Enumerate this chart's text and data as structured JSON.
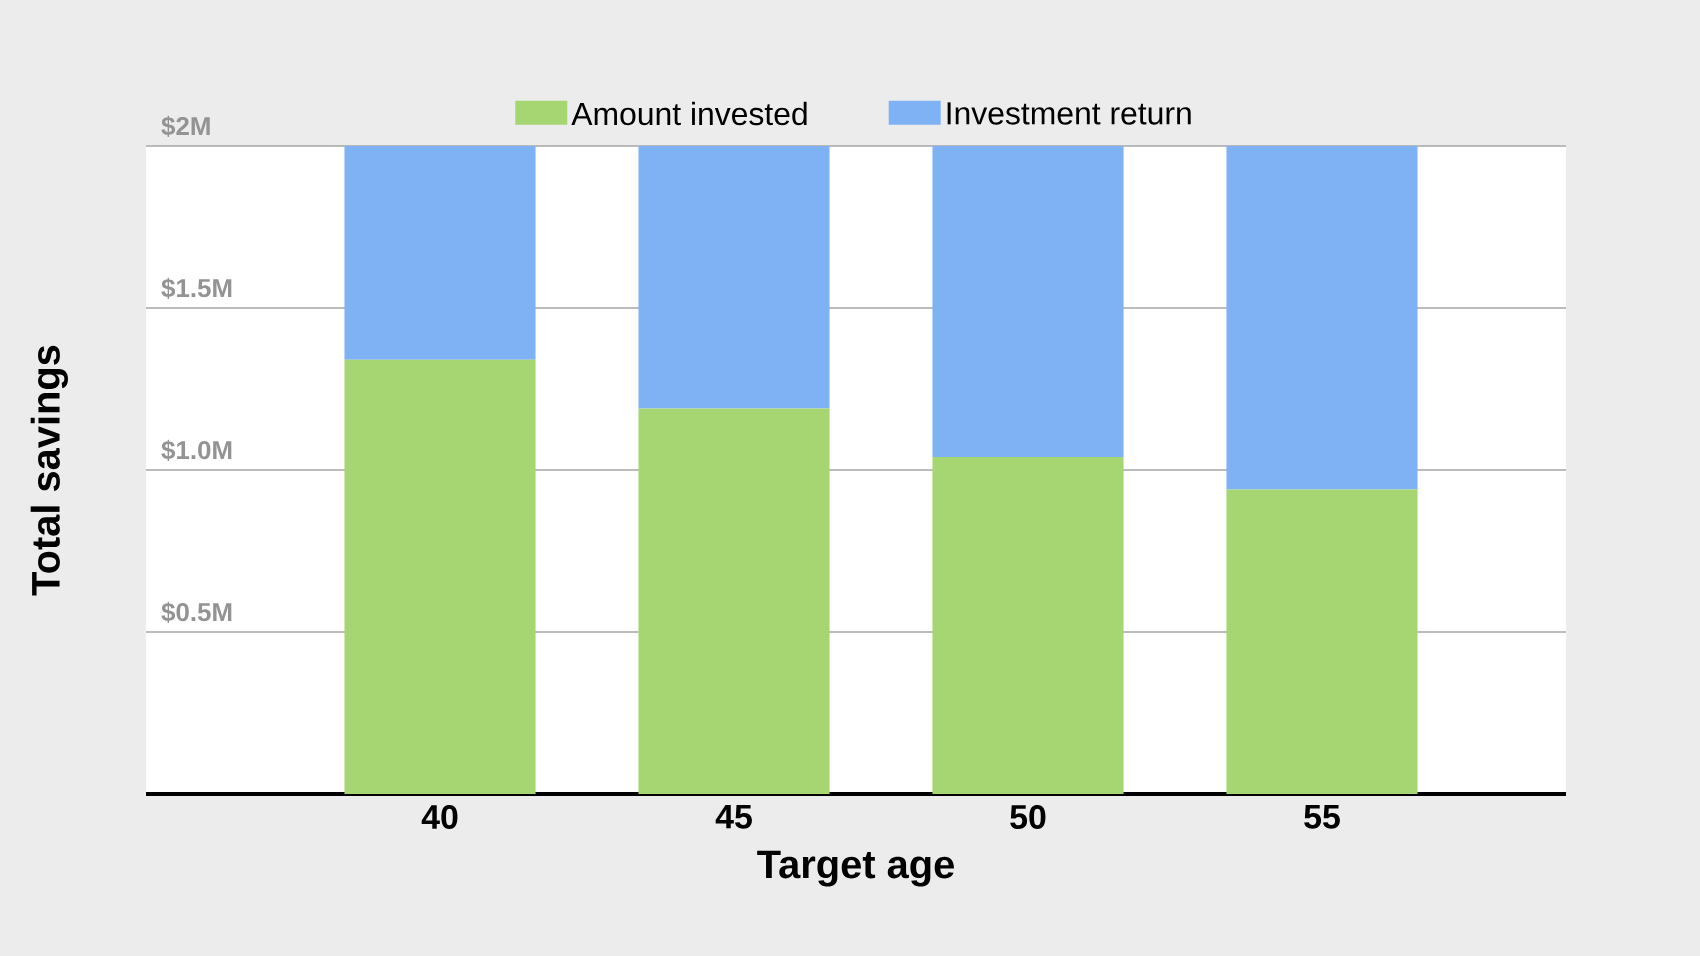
{
  "chart_data": {
    "type": "bar",
    "stacked": true,
    "xlabel": "Target age",
    "ylabel": "Total savings",
    "categories": [
      "40",
      "45",
      "50",
      "55"
    ],
    "series": [
      {
        "name": "Amount invested",
        "color": "#a6d672",
        "values": [
          1.34,
          1.19,
          1.04,
          0.94
        ]
      },
      {
        "name": "Investment return",
        "color": "#7fb2f5",
        "values": [
          0.66,
          0.81,
          0.96,
          1.06
        ]
      }
    ],
    "ylim": [
      0,
      2
    ],
    "yticks": [
      {
        "value": 0.5,
        "label": "$0.5M"
      },
      {
        "value": 1,
        "label": "$1.0M"
      },
      {
        "value": 1.5,
        "label": "$1.5M"
      },
      {
        "value": 2,
        "label": "$2M"
      }
    ],
    "grid": "y",
    "legend": "top"
  }
}
